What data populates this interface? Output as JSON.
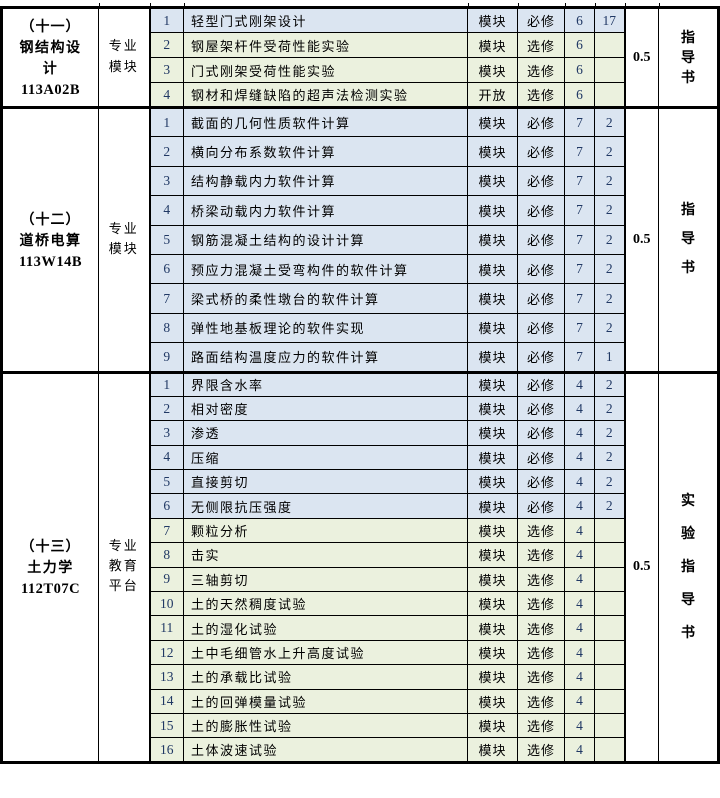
{
  "table": {
    "fill_rules": {
      "必修": "#dbe5f1",
      "选修": "#ebf1de"
    },
    "number_color": "#203864",
    "sections": [
      {
        "index_label": "（十一）",
        "course_name": "钢结构设计",
        "course_code": "113A02B",
        "platform": "专业模块",
        "credit": "0.5",
        "book": "指导书",
        "rows": [
          {
            "no": "1",
            "name": "轻型门式刚架设计",
            "mode": "模块",
            "req": "必修",
            "hours": "6",
            "count": "17"
          },
          {
            "no": "2",
            "name": "钢屋架杆件受荷性能实验",
            "mode": "模块",
            "req": "选修",
            "hours": "6",
            "count": ""
          },
          {
            "no": "3",
            "name": "门式刚架受荷性能实验",
            "mode": "模块",
            "req": "选修",
            "hours": "6",
            "count": ""
          },
          {
            "no": "4",
            "name": "钢材和焊缝缺陷的超声法检测实验",
            "mode": "开放",
            "req": "选修",
            "hours": "6",
            "count": ""
          }
        ]
      },
      {
        "index_label": "（十二）",
        "course_name": "道桥电算",
        "course_code": "113W14B",
        "platform": "专业模块",
        "credit": "0.5",
        "book": "指导书",
        "rows": [
          {
            "no": "1",
            "name": "截面的几何性质软件计算",
            "mode": "模块",
            "req": "必修",
            "hours": "7",
            "count": "2"
          },
          {
            "no": "2",
            "name": "横向分布系数软件计算",
            "mode": "模块",
            "req": "必修",
            "hours": "7",
            "count": "2"
          },
          {
            "no": "3",
            "name": "结构静载内力软件计算",
            "mode": "模块",
            "req": "必修",
            "hours": "7",
            "count": "2"
          },
          {
            "no": "4",
            "name": "桥梁动载内力软件计算",
            "mode": "模块",
            "req": "必修",
            "hours": "7",
            "count": "2"
          },
          {
            "no": "5",
            "name": "钢筋混凝土结构的设计计算",
            "mode": "模块",
            "req": "必修",
            "hours": "7",
            "count": "2"
          },
          {
            "no": "6",
            "name": "预应力混凝土受弯构件的软件计算",
            "mode": "模块",
            "req": "必修",
            "hours": "7",
            "count": "2"
          },
          {
            "no": "7",
            "name": "梁式桥的柔性墩台的软件计算",
            "mode": "模块",
            "req": "必修",
            "hours": "7",
            "count": "2"
          },
          {
            "no": "8",
            "name": "弹性地基板理论的软件实现",
            "mode": "模块",
            "req": "必修",
            "hours": "7",
            "count": "2"
          },
          {
            "no": "9",
            "name": "路面结构温度应力的软件计算",
            "mode": "模块",
            "req": "必修",
            "hours": "7",
            "count": "1"
          }
        ]
      },
      {
        "index_label": "（十三）",
        "course_name": "土力学",
        "course_code": "112T07C",
        "platform": "专业教育平台",
        "credit": "0.5",
        "book": "实验指导书",
        "rows": [
          {
            "no": "1",
            "name": "界限含水率",
            "mode": "模块",
            "req": "必修",
            "hours": "4",
            "count": "2"
          },
          {
            "no": "2",
            "name": "相对密度",
            "mode": "模块",
            "req": "必修",
            "hours": "4",
            "count": "2"
          },
          {
            "no": "3",
            "name": "渗透",
            "mode": "模块",
            "req": "必修",
            "hours": "4",
            "count": "2"
          },
          {
            "no": "4",
            "name": "压缩",
            "mode": "模块",
            "req": "必修",
            "hours": "4",
            "count": "2"
          },
          {
            "no": "5",
            "name": "直接剪切",
            "mode": "模块",
            "req": "必修",
            "hours": "4",
            "count": "2"
          },
          {
            "no": "6",
            "name": "无侧限抗压强度",
            "mode": "模块",
            "req": "必修",
            "hours": "4",
            "count": "2"
          },
          {
            "no": "7",
            "name": "颗粒分析",
            "mode": "模块",
            "req": "选修",
            "hours": "4",
            "count": ""
          },
          {
            "no": "8",
            "name": "击实",
            "mode": "模块",
            "req": "选修",
            "hours": "4",
            "count": ""
          },
          {
            "no": "9",
            "name": "三轴剪切",
            "mode": "模块",
            "req": "选修",
            "hours": "4",
            "count": ""
          },
          {
            "no": "10",
            "name": "土的天然稠度试验",
            "mode": "模块",
            "req": "选修",
            "hours": "4",
            "count": ""
          },
          {
            "no": "11",
            "name": "土的湿化试验",
            "mode": "模块",
            "req": "选修",
            "hours": "4",
            "count": ""
          },
          {
            "no": "12",
            "name": "土中毛细管水上升高度试验",
            "mode": "模块",
            "req": "选修",
            "hours": "4",
            "count": ""
          },
          {
            "no": "13",
            "name": "土的承载比试验",
            "mode": "模块",
            "req": "选修",
            "hours": "4",
            "count": ""
          },
          {
            "no": "14",
            "name": "土的回弹模量试验",
            "mode": "模块",
            "req": "选修",
            "hours": "4",
            "count": ""
          },
          {
            "no": "15",
            "name": "土的膨胀性试验",
            "mode": "模块",
            "req": "选修",
            "hours": "4",
            "count": ""
          },
          {
            "no": "16",
            "name": "土体波速试验",
            "mode": "模块",
            "req": "选修",
            "hours": "4",
            "count": ""
          }
        ]
      }
    ]
  }
}
